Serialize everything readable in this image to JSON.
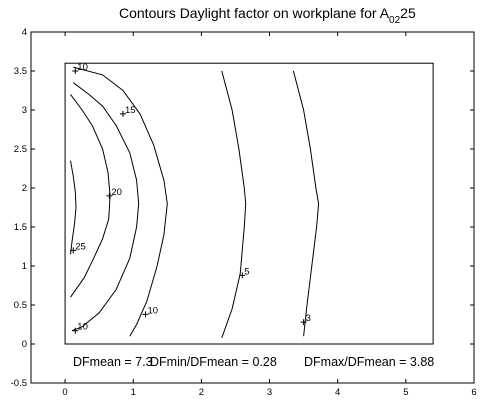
{
  "chart_data": {
    "type": "contour",
    "title": {
      "main": "Contours Daylight factor on workplane  for A",
      "subscript": "02",
      "suffix": "25"
    },
    "xlabel": "",
    "ylabel": "",
    "xlim": [
      -0.5,
      6
    ],
    "ylim": [
      -0.5,
      4
    ],
    "xticks": [
      "0",
      "1",
      "2",
      "3",
      "4",
      "5",
      "6"
    ],
    "yticks": [
      "-0.5",
      "0",
      "0.5",
      "1",
      "1.5",
      "2",
      "2.5",
      "3",
      "3.5",
      "4"
    ],
    "grid": false,
    "room_outline": {
      "x": [
        0,
        5.4
      ],
      "y": [
        0,
        3.6
      ]
    },
    "contours": [
      {
        "level": 25,
        "label": "25",
        "label_at": [
          0.12,
          1.2
        ],
        "points": [
          [
            0.08,
            2.35
          ],
          [
            0.12,
            2.15
          ],
          [
            0.15,
            1.95
          ],
          [
            0.16,
            1.75
          ],
          [
            0.14,
            1.55
          ],
          [
            0.1,
            1.3
          ],
          [
            0.08,
            1.15
          ]
        ]
      },
      {
        "level": 20,
        "label": "20",
        "label_at": [
          0.65,
          1.9
        ],
        "points": [
          [
            0.08,
            3.2
          ],
          [
            0.25,
            3.0
          ],
          [
            0.4,
            2.8
          ],
          [
            0.55,
            2.5
          ],
          [
            0.63,
            2.2
          ],
          [
            0.66,
            1.9
          ],
          [
            0.64,
            1.6
          ],
          [
            0.55,
            1.35
          ],
          [
            0.42,
            1.1
          ],
          [
            0.28,
            0.85
          ],
          [
            0.08,
            0.6
          ]
        ]
      },
      {
        "level": 15,
        "label": "15",
        "label_at": [
          0.85,
          2.95
        ],
        "points": [
          [
            0.12,
            3.35
          ],
          [
            0.35,
            3.2
          ],
          [
            0.55,
            3.05
          ],
          [
            0.75,
            2.8
          ],
          [
            0.95,
            2.45
          ],
          [
            1.05,
            2.1
          ],
          [
            1.08,
            1.8
          ],
          [
            1.05,
            1.5
          ],
          [
            0.95,
            1.1
          ],
          [
            0.75,
            0.7
          ],
          [
            0.5,
            0.4
          ],
          [
            0.25,
            0.22
          ],
          [
            0.1,
            0.17
          ]
        ]
      },
      {
        "level": 10,
        "label": "10",
        "label_at": [
          0.15,
          3.5
        ],
        "label2": "10",
        "label2_at": [
          0.15,
          0.17
        ],
        "points": [
          [
            0.12,
            3.55
          ],
          [
            0.55,
            3.45
          ],
          [
            0.85,
            3.25
          ],
          [
            1.1,
            2.95
          ],
          [
            1.3,
            2.55
          ],
          [
            1.45,
            2.1
          ],
          [
            1.5,
            1.8
          ],
          [
            1.45,
            1.4
          ],
          [
            1.35,
            1.0
          ],
          [
            1.2,
            0.55
          ],
          [
            1.05,
            0.25
          ],
          [
            0.95,
            0.1
          ]
        ]
      },
      {
        "level": 10,
        "label": "10",
        "label_at": [
          1.18,
          0.38
        ],
        "label_is_second": true,
        "points": []
      },
      {
        "level": 5,
        "label": "5",
        "label_at": [
          2.6,
          0.88
        ],
        "points": [
          [
            2.3,
            3.5
          ],
          [
            2.45,
            3.0
          ],
          [
            2.55,
            2.5
          ],
          [
            2.63,
            2.0
          ],
          [
            2.65,
            1.8
          ],
          [
            2.63,
            1.5
          ],
          [
            2.57,
            0.9
          ],
          [
            2.45,
            0.45
          ],
          [
            2.3,
            0.08
          ]
        ]
      },
      {
        "level": 3,
        "label": "3",
        "label_at": [
          3.5,
          0.28
        ],
        "points": [
          [
            3.35,
            3.5
          ],
          [
            3.5,
            3.0
          ],
          [
            3.6,
            2.5
          ],
          [
            3.68,
            2.0
          ],
          [
            3.72,
            1.8
          ],
          [
            3.69,
            1.5
          ],
          [
            3.62,
            1.0
          ],
          [
            3.55,
            0.5
          ],
          [
            3.5,
            0.1
          ]
        ]
      }
    ],
    "stats": {
      "dfmean": "DFmean =  7.3",
      "dfmin_ratio": "DFmin/DFmean = 0.28",
      "dfmax_ratio": "DFmax/DFmean =  3.88"
    }
  }
}
